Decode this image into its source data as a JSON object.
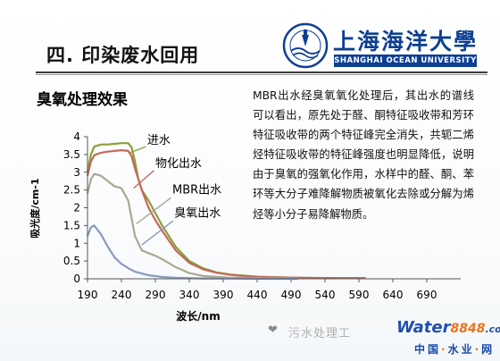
{
  "slide": {
    "title": "四. 印染废水回用",
    "section_heading": "臭氧处理效果",
    "body": "MBR出水经臭氧氧化处理后，其出水的谱线可以看出，原先处于醛、酮特征吸收带和芳环特征吸收带的两个特征峰完全消失，共轭二烯烃特征吸收带的特征峰强度也明显降低，说明由于臭氧的强氧化作用，水样中的醛、酮、苯环等大分子难降解物质被氧化去除或分解为烯烃等小分子易降解物质。"
  },
  "logo": {
    "cn": "上海海洋大學",
    "en": "SHANGHAI OCEAN UNIVERSITY",
    "icon": "university-seal-icon",
    "color": "#0d3f93"
  },
  "watermark": {
    "icon": "wechat-icon",
    "text": "污水处理工",
    "site_a": "Water",
    "site_b": "8848",
    "site_c": ".com",
    "site_cn_1": "中国",
    "site_cn_2": "水业",
    "site_cn_3": "网"
  },
  "chart_data": {
    "type": "line",
    "xlabel": "波长/nm",
    "ylabel": "吸光度/cm-1",
    "xlim": [
      190,
      740
    ],
    "ylim": [
      0,
      4
    ],
    "xticks": [
      190,
      240,
      290,
      340,
      390,
      440,
      490,
      540,
      590,
      640,
      690
    ],
    "yticks": [
      0,
      0.5,
      1,
      1.5,
      2,
      2.5,
      3,
      3.5,
      4
    ],
    "grid": false,
    "legend": "inline labels with leader lines",
    "series": [
      {
        "name": "进水",
        "color": "#8aa037",
        "x": [
          190,
          195,
          200,
          210,
          220,
          230,
          240,
          250,
          255,
          260,
          265,
          270,
          280,
          290,
          300,
          320,
          340,
          360,
          380,
          400,
          440,
          500,
          550,
          600
        ],
        "y": [
          3.0,
          3.5,
          3.72,
          3.78,
          3.78,
          3.8,
          3.82,
          3.82,
          3.7,
          3.3,
          2.8,
          2.5,
          2.2,
          1.85,
          1.5,
          0.9,
          0.5,
          0.3,
          0.18,
          0.12,
          0.06,
          0.03,
          0.02,
          0.02
        ]
      },
      {
        "name": "物化出水",
        "color": "#c2695a",
        "x": [
          190,
          195,
          200,
          210,
          220,
          230,
          240,
          250,
          255,
          260,
          270,
          280,
          290,
          300,
          320,
          340,
          360,
          380,
          400,
          440,
          500,
          550,
          600
        ],
        "y": [
          2.9,
          3.3,
          3.48,
          3.55,
          3.58,
          3.6,
          3.62,
          3.6,
          3.45,
          3.1,
          2.5,
          2.0,
          1.65,
          1.35,
          0.8,
          0.45,
          0.27,
          0.17,
          0.11,
          0.05,
          0.03,
          0.02,
          0.02
        ]
      },
      {
        "name": "MBR出水",
        "color": "#a8a890",
        "x": [
          190,
          195,
          200,
          210,
          220,
          230,
          240,
          250,
          260,
          270,
          280,
          290,
          300,
          320,
          340,
          360,
          400,
          450,
          500
        ],
        "y": [
          2.4,
          2.8,
          2.95,
          2.9,
          2.75,
          2.6,
          2.55,
          2.2,
          1.2,
          0.8,
          0.72,
          0.65,
          0.55,
          0.33,
          0.16,
          0.08,
          0.03,
          0.02,
          0.01
        ]
      },
      {
        "name": "臭氧出水",
        "color": "#8a9bbf",
        "x": [
          190,
          195,
          200,
          210,
          220,
          230,
          240,
          250,
          260,
          280,
          300,
          320,
          340,
          360,
          400,
          450,
          500
        ],
        "y": [
          1.2,
          1.45,
          1.5,
          1.25,
          0.9,
          0.6,
          0.42,
          0.3,
          0.2,
          0.1,
          0.05,
          0.03,
          0.02,
          0.01,
          0.01,
          0.0,
          0.0
        ]
      }
    ]
  }
}
